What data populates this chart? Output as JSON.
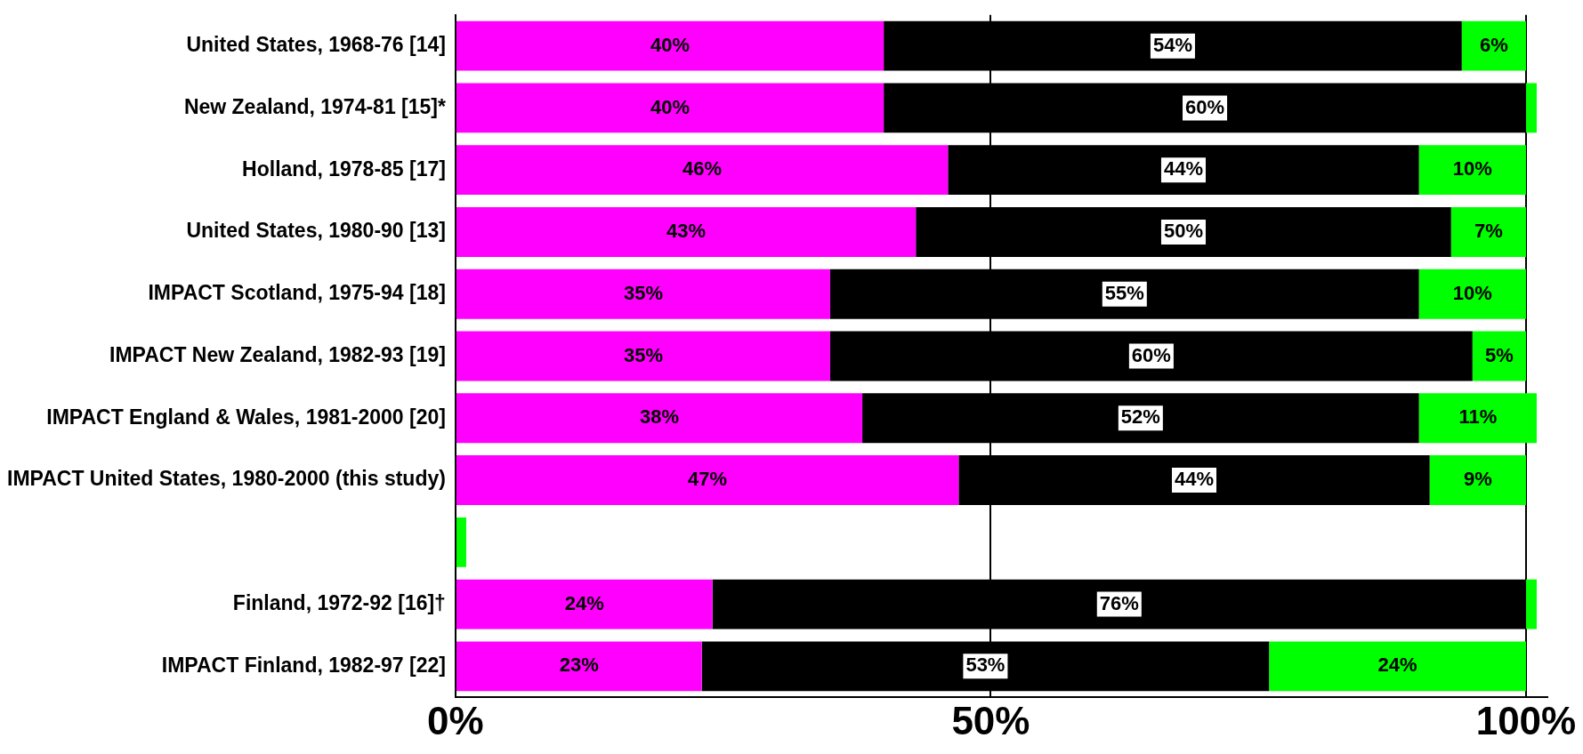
{
  "chart_data": {
    "type": "bar",
    "orientation": "horizontal",
    "stacked": true,
    "categories": [
      "United States, 1968-76 [14]",
      "New Zealand, 1974-81 [15]*",
      "Holland, 1978-85 [17]",
      "United States, 1980-90 [13]",
      "IMPACT Scotland, 1975-94 [18]",
      "IMPACT New Zealand, 1982-93 [19]",
      "IMPACT England & Wales, 1981-2000 [20]",
      "IMPACT United States, 1980-2000 (this study)",
      null,
      "Finland, 1972-92 [16]†",
      "IMPACT Finland, 1982-97 [22]"
    ],
    "series": [
      {
        "color": "#ff00ff",
        "values": [
          40,
          40,
          46,
          43,
          35,
          35,
          38,
          47,
          null,
          24,
          23
        ],
        "value_labels": [
          "40%",
          "40%",
          "46%",
          "43%",
          "35%",
          "35%",
          "38%",
          "47%",
          null,
          "24%",
          "23%"
        ]
      },
      {
        "color": "#000000",
        "values": [
          54,
          60,
          44,
          50,
          55,
          60,
          52,
          44,
          null,
          76,
          53
        ],
        "value_labels": [
          "54%",
          "60%",
          "44%",
          "50%",
          "55%",
          "60%",
          "52%",
          "44%",
          null,
          "76%",
          "53%"
        ]
      },
      {
        "color": "#00ff00",
        "values": [
          6,
          1,
          10,
          7,
          10,
          5,
          11,
          9,
          1,
          1,
          24
        ],
        "value_labels": [
          "6%",
          null,
          "10%",
          "7%",
          "10%",
          "5%",
          "11%",
          "9%",
          null,
          null,
          "24%"
        ]
      }
    ],
    "xlim": [
      0,
      102
    ],
    "xticks": [
      {
        "value": 0,
        "label": "0%"
      },
      {
        "value": 50,
        "label": "50%"
      },
      {
        "value": 100,
        "label": "100%"
      }
    ],
    "grid": "x",
    "legend": false
  }
}
